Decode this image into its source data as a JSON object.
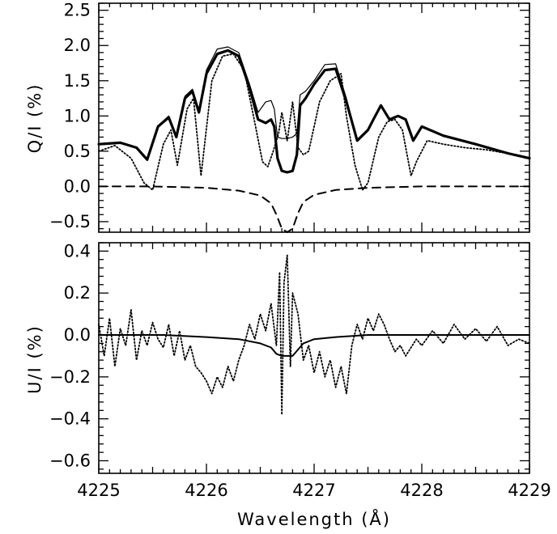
{
  "chart_data": [
    {
      "type": "line",
      "panel": "top",
      "ylabel": "Q/I (%)",
      "xlim": [
        4225,
        4229
      ],
      "ylim": [
        -0.65,
        2.6
      ],
      "y_ticks": [
        2.5,
        2.0,
        1.5,
        1.0,
        0.5,
        0.0,
        -0.5
      ],
      "y_tick_labels": [
        "2.5",
        "2.0",
        "1.5",
        "1.0",
        "0.5",
        "0.0",
        "−0.5"
      ],
      "series": [
        {
          "style": "thick-solid",
          "x": [
            4225.0,
            4225.2,
            4225.35,
            4225.45,
            4225.55,
            4225.65,
            4225.72,
            4225.8,
            4225.87,
            4225.93,
            4226.0,
            4226.1,
            4226.2,
            4226.3,
            4226.4,
            4226.48,
            4226.55,
            4226.6,
            4226.63,
            4226.66,
            4226.7,
            4226.75,
            4226.8,
            4226.84,
            4226.87,
            4226.92,
            4227.0,
            4227.1,
            4227.2,
            4227.3,
            4227.4,
            4227.5,
            4227.55,
            4227.62,
            4227.7,
            4227.78,
            4227.85,
            4227.92,
            4228.0,
            4228.2,
            4228.5,
            4228.8,
            4229.0
          ],
          "y": [
            0.6,
            0.62,
            0.55,
            0.38,
            0.85,
            0.98,
            0.7,
            1.25,
            1.35,
            1.05,
            1.6,
            1.88,
            1.93,
            1.85,
            1.4,
            0.95,
            0.9,
            0.95,
            0.85,
            0.4,
            0.22,
            0.2,
            0.22,
            0.45,
            1.15,
            1.25,
            1.45,
            1.65,
            1.67,
            1.2,
            0.65,
            0.8,
            0.95,
            1.15,
            0.95,
            1.0,
            0.95,
            0.65,
            0.85,
            0.72,
            0.6,
            0.47,
            0.4
          ]
        },
        {
          "style": "thin-solid",
          "x": [
            4225.0,
            4225.2,
            4225.35,
            4225.45,
            4225.55,
            4225.65,
            4225.72,
            4225.8,
            4225.87,
            4225.93,
            4226.0,
            4226.1,
            4226.2,
            4226.3,
            4226.4,
            4226.48,
            4226.55,
            4226.6,
            4226.63,
            4226.66,
            4226.7,
            4226.75,
            4226.8,
            4226.84,
            4226.87,
            4226.92,
            4227.0,
            4227.1,
            4227.2,
            4227.3,
            4227.4,
            4227.5,
            4227.55,
            4227.62,
            4227.7,
            4227.78,
            4227.85,
            4227.92,
            4228.0,
            4228.2,
            4228.5,
            4228.8,
            4229.0
          ],
          "y": [
            0.6,
            0.62,
            0.55,
            0.38,
            0.86,
            1.0,
            0.72,
            1.28,
            1.38,
            1.08,
            1.65,
            1.95,
            1.98,
            1.9,
            1.45,
            1.05,
            1.2,
            1.22,
            1.1,
            0.7,
            0.68,
            0.68,
            0.7,
            0.75,
            1.3,
            1.35,
            1.5,
            1.73,
            1.74,
            1.25,
            0.65,
            0.8,
            0.95,
            1.15,
            0.95,
            1.0,
            0.95,
            0.65,
            0.85,
            0.72,
            0.6,
            0.47,
            0.4
          ]
        },
        {
          "style": "dotted",
          "x": [
            4225.0,
            4225.15,
            4225.3,
            4225.42,
            4225.5,
            4225.6,
            4225.67,
            4225.73,
            4225.82,
            4225.88,
            4225.95,
            4226.05,
            4226.15,
            4226.25,
            4226.35,
            4226.45,
            4226.52,
            4226.57,
            4226.62,
            4226.67,
            4226.7,
            4226.75,
            4226.8,
            4226.85,
            4226.9,
            4226.95,
            4227.05,
            4227.15,
            4227.25,
            4227.3,
            4227.38,
            4227.45,
            4227.5,
            4227.6,
            4227.68,
            4227.75,
            4227.82,
            4227.9,
            4227.95,
            4228.05,
            4228.2,
            4228.4,
            4228.6,
            4228.75
          ],
          "y": [
            0.5,
            0.58,
            0.4,
            0.05,
            -0.05,
            0.6,
            0.8,
            0.3,
            1.1,
            1.25,
            0.15,
            1.5,
            1.85,
            1.88,
            1.65,
            0.9,
            0.35,
            0.28,
            0.5,
            0.75,
            1.05,
            0.65,
            1.2,
            0.55,
            0.45,
            0.5,
            1.2,
            1.5,
            1.6,
            1.0,
            0.3,
            -0.05,
            0.05,
            0.7,
            0.92,
            0.95,
            0.8,
            0.15,
            0.35,
            0.65,
            0.6,
            0.55,
            0.52,
            0.48
          ]
        },
        {
          "style": "dashed",
          "x": [
            4225.0,
            4225.5,
            4226.0,
            4226.3,
            4226.5,
            4226.6,
            4226.65,
            4226.7,
            4226.75,
            4226.8,
            4226.85,
            4226.9,
            4227.0,
            4227.2,
            4227.5,
            4228.0,
            4229.0
          ],
          "y": [
            0.0,
            0.0,
            -0.02,
            -0.06,
            -0.13,
            -0.24,
            -0.4,
            -0.6,
            -0.65,
            -0.6,
            -0.38,
            -0.22,
            -0.12,
            -0.05,
            -0.02,
            0.0,
            0.0
          ]
        }
      ]
    },
    {
      "type": "line",
      "panel": "bottom",
      "ylabel": "U/I (%)",
      "xlabel": "Wavelength (Å)",
      "xlim": [
        4225,
        4229
      ],
      "ylim": [
        -0.66,
        0.44
      ],
      "x_ticks": [
        4225,
        4226,
        4227,
        4228,
        4229
      ],
      "x_tick_labels": [
        "4225",
        "4226",
        "4227",
        "4228",
        "4229"
      ],
      "y_ticks": [
        0.4,
        0.2,
        0.0,
        -0.2,
        -0.4,
        -0.6
      ],
      "y_tick_labels": [
        "0.4",
        "0.2",
        "0.0",
        "−0.2",
        "−0.4",
        "−0.6"
      ],
      "series": [
        {
          "style": "solid",
          "x": [
            4225.0,
            4225.6,
            4226.0,
            4226.3,
            4226.5,
            4226.6,
            4226.65,
            4226.7,
            4226.8,
            4226.85,
            4226.9,
            4227.0,
            4227.2,
            4227.5,
            4228.0,
            4229.0
          ],
          "y": [
            0.0,
            0.0,
            -0.01,
            -0.02,
            -0.04,
            -0.06,
            -0.09,
            -0.1,
            -0.1,
            -0.07,
            -0.04,
            -0.02,
            -0.01,
            0.0,
            0.0,
            0.0
          ]
        },
        {
          "style": "dotted",
          "x": [
            4225.0,
            4225.05,
            4225.1,
            4225.15,
            4225.2,
            4225.25,
            4225.3,
            4225.35,
            4225.4,
            4225.45,
            4225.5,
            4225.55,
            4225.6,
            4225.65,
            4225.7,
            4225.75,
            4225.8,
            4225.85,
            4225.9,
            4225.95,
            4226.0,
            4226.05,
            4226.1,
            4226.15,
            4226.2,
            4226.25,
            4226.3,
            4226.35,
            4226.4,
            4226.45,
            4226.5,
            4226.55,
            4226.6,
            4226.65,
            4226.68,
            4226.7,
            4226.72,
            4226.75,
            4226.78,
            4226.8,
            4226.85,
            4226.9,
            4226.95,
            4227.0,
            4227.05,
            4227.1,
            4227.15,
            4227.2,
            4227.25,
            4227.3,
            4227.35,
            4227.4,
            4227.45,
            4227.5,
            4227.55,
            4227.6,
            4227.65,
            4227.7,
            4227.75,
            4227.8,
            4227.85,
            4227.9,
            4227.95,
            4228.0,
            4228.1,
            4228.2,
            4228.3,
            4228.4,
            4228.5,
            4228.6,
            4228.7,
            4228.8,
            4228.9,
            4229.0
          ],
          "y": [
            0.05,
            -0.1,
            0.08,
            -0.15,
            0.03,
            -0.05,
            0.12,
            -0.12,
            0.02,
            -0.05,
            0.06,
            -0.02,
            -0.06,
            0.05,
            -0.1,
            0.02,
            -0.12,
            -0.05,
            -0.15,
            -0.18,
            -0.22,
            -0.28,
            -0.2,
            -0.25,
            -0.15,
            -0.22,
            -0.12,
            -0.05,
            0.05,
            -0.02,
            0.1,
            0.02,
            0.15,
            -0.05,
            0.3,
            -0.38,
            0.25,
            0.38,
            -0.15,
            0.2,
            0.1,
            -0.12,
            -0.05,
            -0.18,
            -0.08,
            -0.2,
            -0.12,
            -0.25,
            -0.15,
            -0.28,
            -0.05,
            0.05,
            -0.02,
            0.08,
            0.02,
            0.1,
            0.05,
            -0.02,
            -0.08,
            -0.05,
            -0.1,
            -0.06,
            -0.02,
            -0.05,
            0.02,
            -0.04,
            0.05,
            -0.02,
            0.03,
            -0.03,
            0.04,
            -0.05,
            -0.02,
            -0.04
          ]
        }
      ]
    }
  ]
}
